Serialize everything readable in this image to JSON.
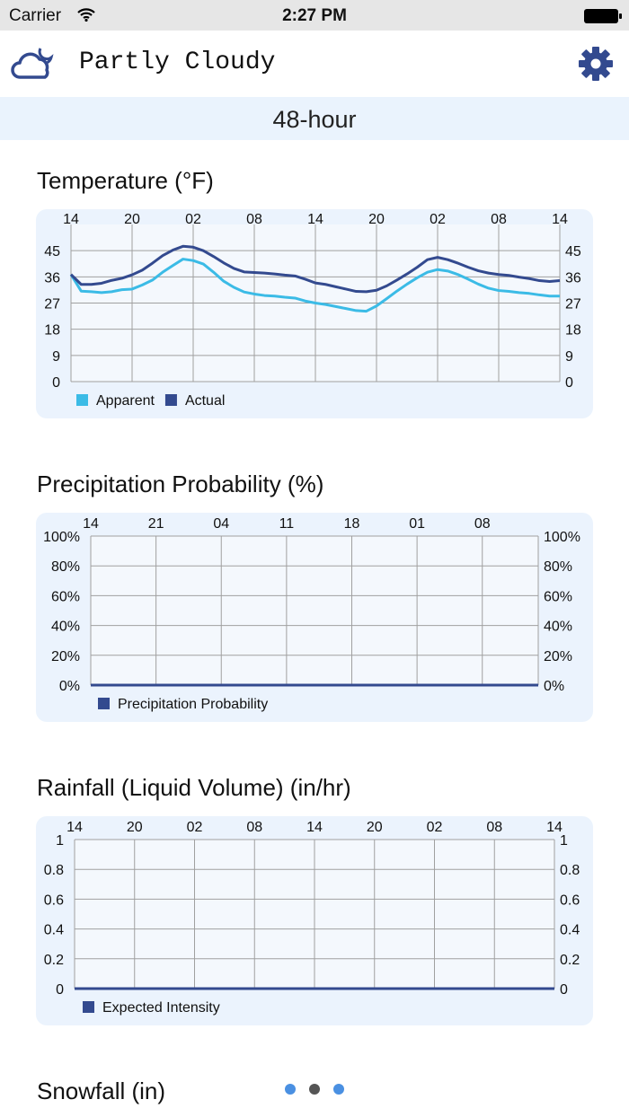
{
  "status": {
    "carrier": "Carrier",
    "time": "2:27 PM"
  },
  "header": {
    "title": "Partly Cloudy",
    "weather_icon": "cloud-moon-icon",
    "settings_icon": "gear-icon",
    "accent": "#334a8f"
  },
  "range": {
    "label": "48-hour"
  },
  "sections": {
    "temperature": "Temperature (°F)",
    "precip": "Precipitation Probability (%)",
    "rain": "Rainfall (Liquid Volume) (in/hr)",
    "snow": "Snowfall (in)"
  },
  "chart_data": [
    {
      "type": "line",
      "title": "Temperature (°F)",
      "x_ticks": [
        "14",
        "20",
        "02",
        "08",
        "14",
        "20",
        "02",
        "08",
        "14"
      ],
      "y_ticks": [
        "0",
        "9",
        "18",
        "27",
        "36",
        "45"
      ],
      "ylim": [
        0,
        54
      ],
      "xlim_hours": [
        0,
        48
      ],
      "grid": true,
      "legend": "bottom-left",
      "series": [
        {
          "name": "Apparent",
          "color": "#3bbbe6",
          "values": [
            36.8,
            31.1,
            30.9,
            30.6,
            30.9,
            31.6,
            31.8,
            33.2,
            34.9,
            37.6,
            39.9,
            42.1,
            41.6,
            40.4,
            37.6,
            34.5,
            32.4,
            30.8,
            30.1,
            29.6,
            29.4,
            29,
            28.7,
            27.7,
            27,
            26.5,
            25.8,
            25.1,
            24.4,
            24.2,
            26,
            28.5,
            31.1,
            33.5,
            35.7,
            37.6,
            38.5,
            38,
            36.8,
            35.2,
            33.5,
            32.1,
            31.3,
            31,
            30.6,
            30.3,
            29.8,
            29.4,
            29.4
          ]
        },
        {
          "name": "Actual",
          "color": "#334a8f",
          "values": [
            36.8,
            33.4,
            33.4,
            33.8,
            34.8,
            35.5,
            36.7,
            38.3,
            40.7,
            43.3,
            45.2,
            46.5,
            46.2,
            45,
            43,
            40.8,
            38.9,
            37.7,
            37.5,
            37.3,
            37,
            36.6,
            36.3,
            35.2,
            33.9,
            33.4,
            32.6,
            31.8,
            31,
            30.9,
            31.4,
            32.9,
            34.9,
            37,
            39.3,
            41.9,
            42.7,
            41.9,
            40.7,
            39.3,
            38.1,
            37.3,
            36.8,
            36.5,
            35.9,
            35.4,
            34.7,
            34.4,
            34.7
          ]
        }
      ]
    },
    {
      "type": "line",
      "title": "Precipitation Probability (%)",
      "x_ticks": [
        "14",
        "21",
        "04",
        "11",
        "18",
        "01",
        "08"
      ],
      "y_ticks": [
        "0%",
        "20%",
        "40%",
        "60%",
        "80%",
        "100%"
      ],
      "ylim": [
        0,
        100
      ],
      "xlim_hours": [
        0,
        48
      ],
      "grid": true,
      "legend": "bottom-left",
      "series": [
        {
          "name": "Precipitation Probability",
          "color": "#334a8f",
          "values": [
            0,
            0
          ]
        }
      ]
    },
    {
      "type": "line",
      "title": "Rainfall (Liquid Volume) (in/hr)",
      "x_ticks": [
        "14",
        "20",
        "02",
        "08",
        "14",
        "20",
        "02",
        "08",
        "14"
      ],
      "y_ticks": [
        "0",
        "0.2",
        "0.4",
        "0.6",
        "0.8",
        "1"
      ],
      "ylim": [
        0,
        1
      ],
      "xlim_hours": [
        0,
        48
      ],
      "grid": true,
      "legend": "bottom-left",
      "series": [
        {
          "name": "Expected Intensity",
          "color": "#334a8f",
          "values": [
            0,
            0
          ]
        }
      ]
    }
  ],
  "pager": {
    "pages": 3,
    "current": 2,
    "active_color": "#555555",
    "inactive_color": "#4a90e2"
  }
}
